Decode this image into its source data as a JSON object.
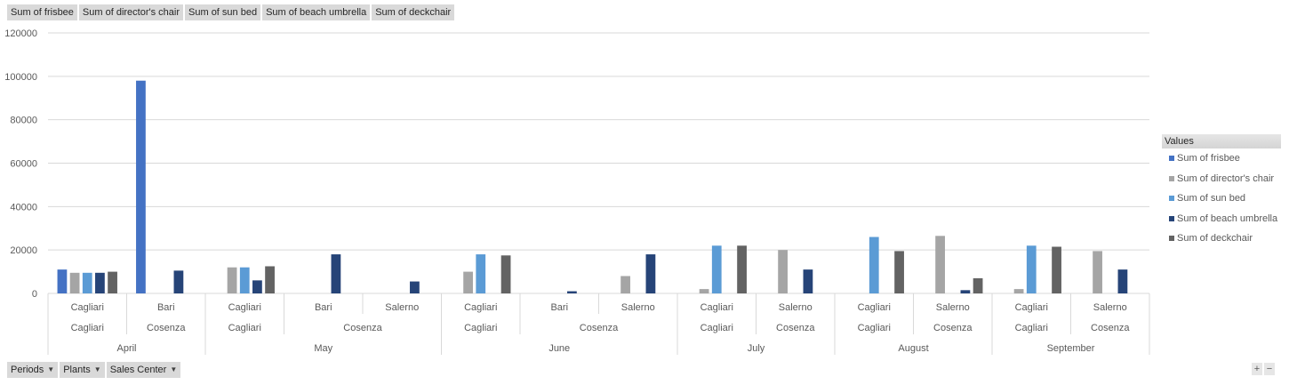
{
  "value_buttons": [
    "Sum of frisbee",
    "Sum of director's chair",
    "Sum of sun bed",
    "Sum of beach umbrella",
    "Sum of deckchair"
  ],
  "filter_buttons": [
    "Periods",
    "Plants",
    "Sales Center"
  ],
  "legend": {
    "title": "Values"
  },
  "zoom": {
    "plus": "+",
    "minus": "−"
  },
  "chart_data": {
    "type": "bar",
    "ylim": [
      0,
      120000
    ],
    "yticks": [
      0,
      20000,
      40000,
      60000,
      80000,
      100000,
      120000
    ],
    "grid": true,
    "legend_position": "right",
    "series": [
      {
        "name": "Sum of frisbee",
        "color": "#4472c4",
        "values": [
          11000,
          98000,
          null,
          null,
          null,
          null,
          null,
          null,
          null,
          null,
          null,
          null,
          null,
          null
        ]
      },
      {
        "name": "Sum of director's chair",
        "color": "#a5a5a5",
        "values": [
          9500,
          null,
          12000,
          null,
          null,
          10000,
          null,
          8000,
          2000,
          20000,
          null,
          26500,
          2000,
          19500
        ]
      },
      {
        "name": "Sum of sun bed",
        "color": "#5b9bd5",
        "values": [
          9500,
          null,
          12000,
          null,
          null,
          18000,
          null,
          null,
          22000,
          null,
          26000,
          null,
          22000,
          null
        ]
      },
      {
        "name": "Sum of beach umbrella",
        "color": "#264478",
        "values": [
          9500,
          10500,
          6000,
          18000,
          5500,
          null,
          1000,
          18000,
          null,
          11000,
          null,
          1500,
          null,
          11000
        ]
      },
      {
        "name": "Sum of deckchair",
        "color": "#636363",
        "values": [
          10000,
          null,
          12500,
          null,
          null,
          17500,
          null,
          null,
          22000,
          null,
          19500,
          7000,
          21500,
          null
        ]
      }
    ],
    "category_levels": {
      "sales_center": [
        "Cagliari",
        "Bari",
        "Cagliari",
        "Bari",
        "Salerno",
        "Cagliari",
        "Bari",
        "Salerno",
        "Cagliari",
        "Salerno",
        "Cagliari",
        "Salerno",
        "Cagliari",
        "Salerno"
      ],
      "plant": [
        {
          "label": "Cagliari",
          "span": 1
        },
        {
          "label": "Cosenza",
          "span": 1
        },
        {
          "label": "Cagliari",
          "span": 1
        },
        {
          "label": "Cosenza",
          "span": 2
        },
        {
          "label": "Cagliari",
          "span": 1
        },
        {
          "label": "Cosenza",
          "span": 2
        },
        {
          "label": "Cagliari",
          "span": 1
        },
        {
          "label": "Cosenza",
          "span": 1
        },
        {
          "label": "Cagliari",
          "span": 1
        },
        {
          "label": "Cosenza",
          "span": 1
        },
        {
          "label": "Cagliari",
          "span": 1
        },
        {
          "label": "Cosenza",
          "span": 1
        }
      ],
      "period": [
        {
          "label": "April",
          "span": 2
        },
        {
          "label": "May",
          "span": 3
        },
        {
          "label": "June",
          "span": 3
        },
        {
          "label": "July",
          "span": 2
        },
        {
          "label": "August",
          "span": 2
        },
        {
          "label": "September",
          "span": 2
        }
      ]
    }
  }
}
